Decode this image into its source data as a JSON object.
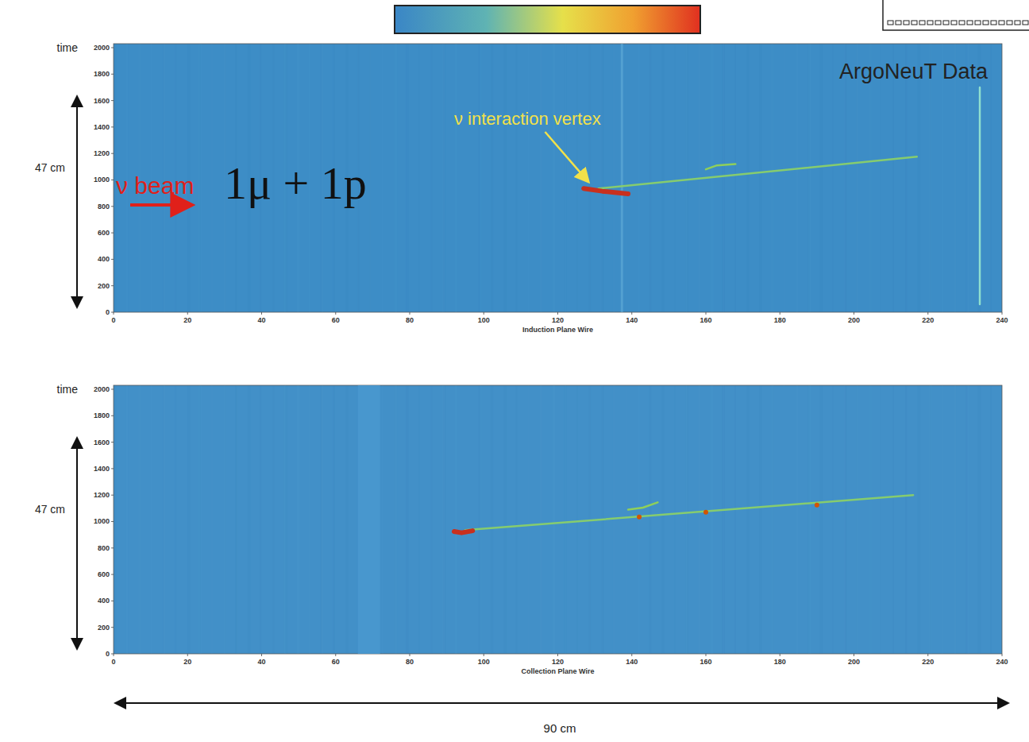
{
  "chart_data": [
    {
      "type": "line",
      "title": "ArgoNeuT Data",
      "x_label": "Induction Plane Wire",
      "y_label": "time",
      "height_label": "47 cm",
      "xlim": [
        0,
        240
      ],
      "ylim": [
        0,
        2030
      ],
      "xticks": [
        0,
        20,
        40,
        60,
        80,
        100,
        120,
        140,
        160,
        180,
        200,
        220,
        240
      ],
      "yticks": [
        0,
        200,
        400,
        600,
        800,
        1000,
        1200,
        1400,
        1600,
        1800,
        2000
      ],
      "tick_labels": true,
      "series": [
        {
          "type": "line",
          "color": "#86cc6e",
          "line_style": "solid",
          "x": [
            131,
            217
          ],
          "values": [
            935,
            1175
          ]
        },
        {
          "type": "line",
          "color": "#c8301e",
          "line_style": "thick",
          "x": [
            127,
            132,
            139
          ],
          "values": [
            935,
            915,
            895
          ]
        },
        {
          "type": "line",
          "color": "#8fcf5a",
          "line_style": "solid",
          "x": [
            160,
            163,
            168
          ],
          "values": [
            1080,
            1110,
            1120
          ]
        },
        {
          "type": "line",
          "color": "#8fe0d0",
          "line_style": "solid",
          "x": [
            234,
            234
          ],
          "values": [
            60,
            1700
          ]
        }
      ],
      "annotations": [
        {
          "text": "ν beam"
        },
        {
          "text": "1μ + 1p"
        },
        {
          "text": "ν interaction vertex",
          "x": 130,
          "y": 930
        }
      ]
    },
    {
      "type": "line",
      "x_label": "Collection Plane Wire",
      "y_label": "time",
      "height_label": "47 cm",
      "width_label": "90 cm",
      "xlim": [
        0,
        240
      ],
      "ylim": [
        0,
        2030
      ],
      "xticks": [
        0,
        20,
        40,
        60,
        80,
        100,
        120,
        140,
        160,
        180,
        200,
        220,
        240
      ],
      "yticks": [
        0,
        200,
        400,
        600,
        800,
        1000,
        1200,
        1400,
        1600,
        1800,
        2000
      ],
      "tick_labels": true,
      "series": [
        {
          "type": "line",
          "color": "#86cc6e",
          "line_style": "solid",
          "x": [
            95,
            216
          ],
          "values": [
            935,
            1200
          ]
        },
        {
          "type": "line",
          "color": "#c8301e",
          "line_style": "thick",
          "x": [
            92,
            94,
            97
          ],
          "values": [
            925,
            915,
            930
          ]
        },
        {
          "type": "line",
          "color": "#8fcf5a",
          "line_style": "solid",
          "x": [
            139,
            143,
            147
          ],
          "values": [
            1090,
            1105,
            1145
          ]
        },
        {
          "type": "scatter",
          "color": "#d35400",
          "marker": "circle",
          "x": [
            142,
            160,
            190
          ],
          "values": [
            1035,
            1070,
            1125
          ]
        }
      ]
    }
  ]
}
